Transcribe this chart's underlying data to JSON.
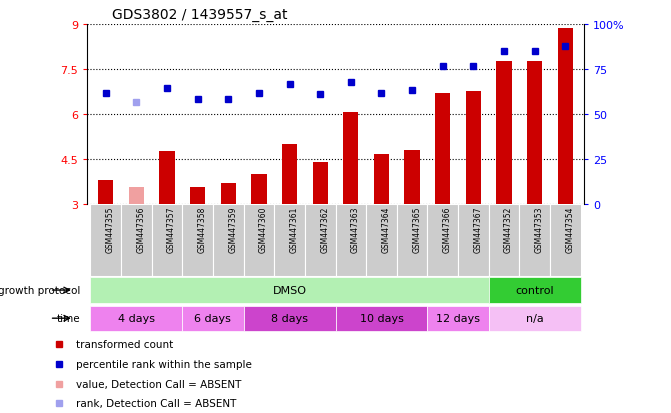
{
  "title": "GDS3802 / 1439557_s_at",
  "samples": [
    "GSM447355",
    "GSM447356",
    "GSM447357",
    "GSM447358",
    "GSM447359",
    "GSM447360",
    "GSM447361",
    "GSM447362",
    "GSM447363",
    "GSM447364",
    "GSM447365",
    "GSM447366",
    "GSM447367",
    "GSM447352",
    "GSM447353",
    "GSM447354"
  ],
  "red_values": [
    3.8,
    3.55,
    4.75,
    3.55,
    3.7,
    4.0,
    5.0,
    4.4,
    6.05,
    4.65,
    4.8,
    6.7,
    6.75,
    7.75,
    7.75,
    8.85
  ],
  "blue_values": [
    6.7,
    6.4,
    6.85,
    6.5,
    6.5,
    6.7,
    7.0,
    6.65,
    7.05,
    6.7,
    6.8,
    7.6,
    7.6,
    8.1,
    8.1,
    8.25
  ],
  "red_absent": [
    false,
    true,
    false,
    false,
    false,
    false,
    false,
    false,
    false,
    false,
    false,
    false,
    false,
    false,
    false,
    false
  ],
  "blue_absent": [
    false,
    true,
    false,
    false,
    false,
    false,
    false,
    false,
    false,
    false,
    false,
    false,
    false,
    false,
    false,
    false
  ],
  "ylim_left": [
    3,
    9
  ],
  "ylim_right": [
    0,
    100
  ],
  "yticks_left": [
    3,
    4.5,
    6,
    7.5,
    9
  ],
  "yticks_right": [
    0,
    25,
    50,
    75,
    100
  ],
  "growth_protocol_groups": [
    {
      "label": "DMSO",
      "start": 0,
      "end": 12,
      "color": "#b3f0b3"
    },
    {
      "label": "control",
      "start": 13,
      "end": 15,
      "color": "#33cc33"
    }
  ],
  "time_groups": [
    {
      "label": "4 days",
      "start": 0,
      "end": 2,
      "color": "#ee82ee"
    },
    {
      "label": "6 days",
      "start": 3,
      "end": 4,
      "color": "#ee82ee"
    },
    {
      "label": "8 days",
      "start": 5,
      "end": 7,
      "color": "#cc44cc"
    },
    {
      "label": "10 days",
      "start": 8,
      "end": 10,
      "color": "#cc44cc"
    },
    {
      "label": "12 days",
      "start": 11,
      "end": 12,
      "color": "#ee82ee"
    },
    {
      "label": "n/a",
      "start": 13,
      "end": 15,
      "color": "#f5c0f5"
    }
  ],
  "bar_color_normal": "#cc0000",
  "bar_color_absent": "#f0a0a0",
  "dot_color_normal": "#0000cc",
  "dot_color_absent": "#a0a0ee",
  "bar_width": 0.5,
  "grid_color": "#000000",
  "bg_color": "#ffffff",
  "plot_bg_color": "#ffffff",
  "sample_label_bg": "#cccccc",
  "legend_items": [
    {
      "label": "transformed count",
      "color": "#cc0000"
    },
    {
      "label": "percentile rank within the sample",
      "color": "#0000cc"
    },
    {
      "label": "value, Detection Call = ABSENT",
      "color": "#f0a0a0"
    },
    {
      "label": "rank, Detection Call = ABSENT",
      "color": "#a0a0ee"
    }
  ]
}
